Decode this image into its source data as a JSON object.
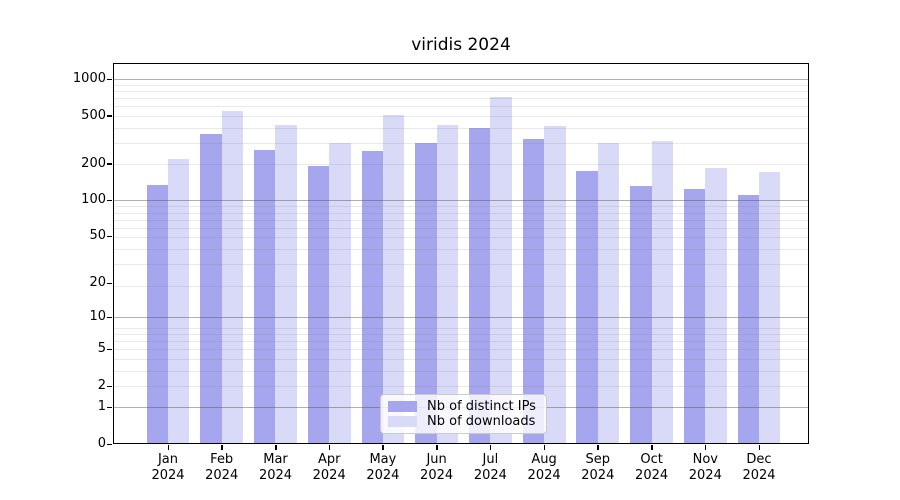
{
  "title": "viridis 2024",
  "chart_data": {
    "type": "bar",
    "title": "viridis 2024",
    "categories": [
      "Jan",
      "Feb",
      "Mar",
      "Apr",
      "May",
      "Jun",
      "Jul",
      "Aug",
      "Sep",
      "Oct",
      "Nov",
      "Dec"
    ],
    "year": "2024",
    "series": [
      {
        "key": "distinct-ips",
        "name": "Nb of distinct IPs",
        "color": "#a6a6ee",
        "values": [
          134,
          350,
          262,
          193,
          254,
          296,
          395,
          320,
          176,
          130,
          125,
          110
        ]
      },
      {
        "key": "downloads",
        "name": "Nb of downloads",
        "color": "#d9d9f8",
        "values": [
          220,
          550,
          420,
          296,
          508,
          415,
          710,
          408,
          300,
          306,
          185,
          170
        ]
      }
    ],
    "xlabel": "",
    "ylabel": "",
    "yscale": "log1p",
    "yticks": [
      0,
      1,
      2,
      5,
      10,
      20,
      50,
      100,
      200,
      500,
      1000
    ],
    "major_grid_ticks": [
      1,
      10,
      100,
      1000
    ],
    "ylim": [
      0,
      1350
    ],
    "grid": "on",
    "legend_position": "lower center",
    "legend_labels": [
      "Nb of distinct IPs",
      "Nb of downloads"
    ]
  }
}
